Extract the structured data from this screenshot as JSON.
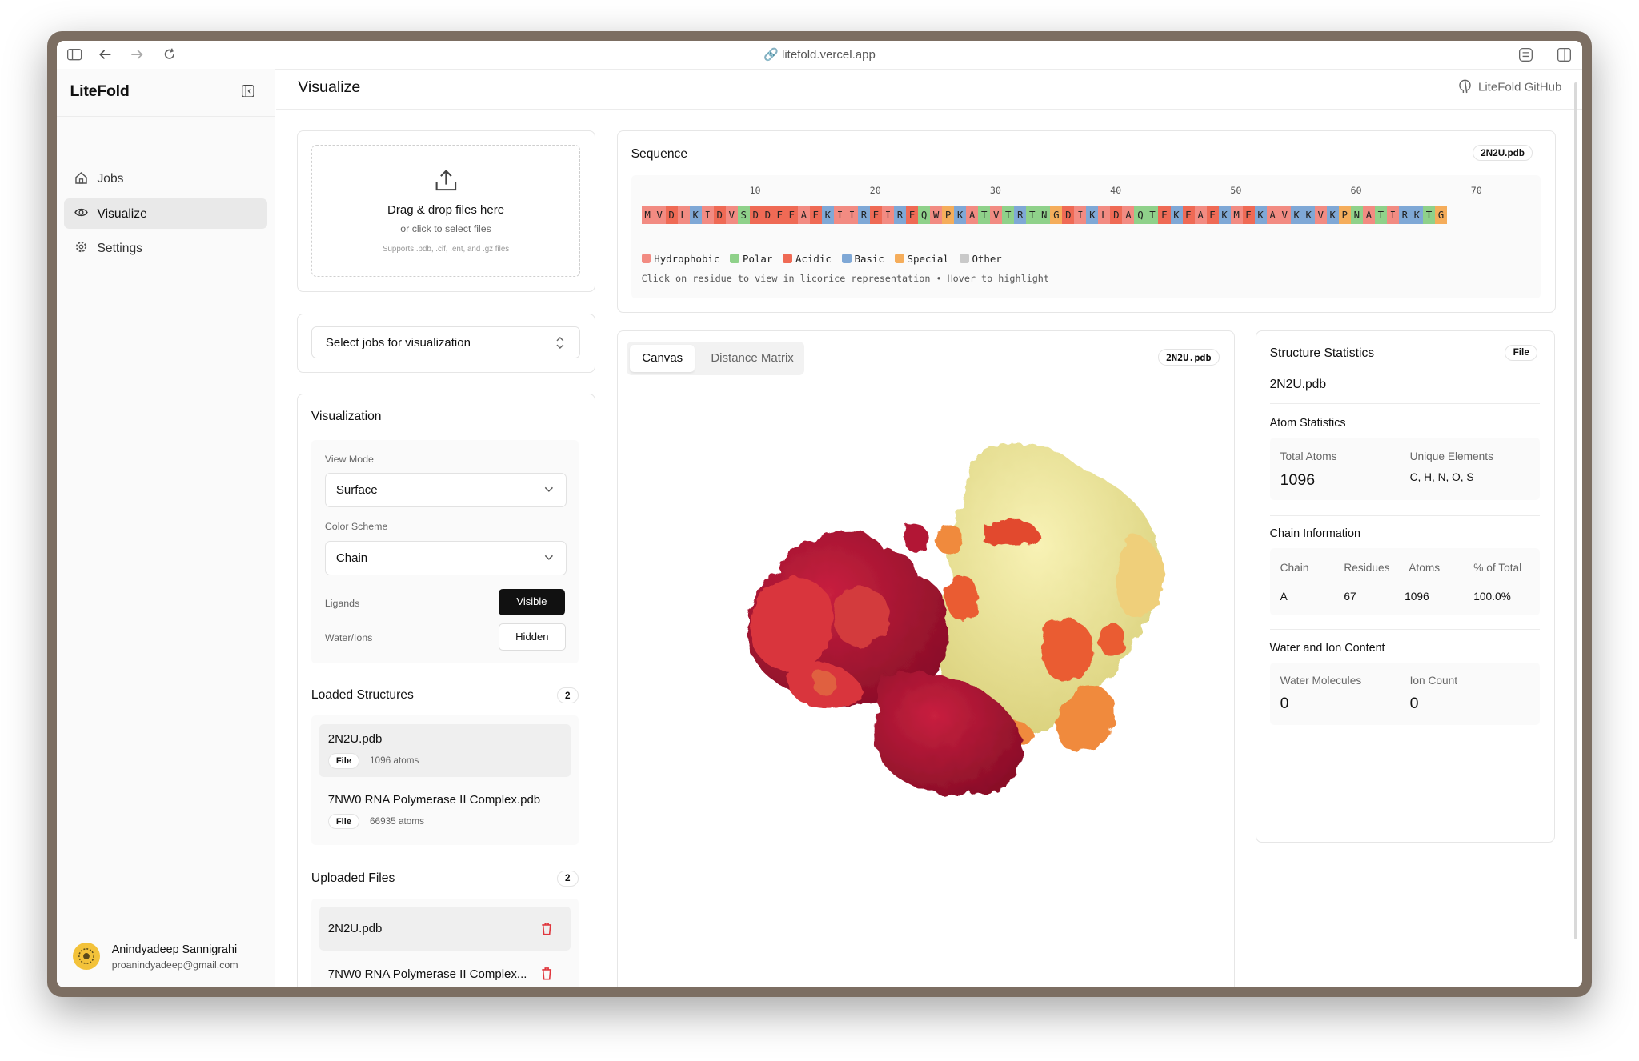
{
  "browser": {
    "url": "litefold.vercel.app"
  },
  "sidebar": {
    "brand": "LiteFold",
    "items": [
      {
        "label": "Jobs",
        "icon": "home-icon"
      },
      {
        "label": "Visualize",
        "icon": "eye-icon",
        "active": true
      },
      {
        "label": "Settings",
        "icon": "gear-icon"
      }
    ],
    "user": {
      "name": "Anindyadeep Sannigrahi",
      "email": "proanindyadeep@gmail.com"
    }
  },
  "header": {
    "title": "Visualize",
    "github": "LiteFold GitHub"
  },
  "upload": {
    "title": "Drag & drop files here",
    "subtitle": "or click to select files",
    "hint": "Supports .pdb, .cif, .ent, and .gz files"
  },
  "job_select": {
    "placeholder": "Select jobs for visualization"
  },
  "visualization": {
    "title": "Visualization",
    "view_mode_label": "View Mode",
    "view_mode_value": "Surface",
    "color_scheme_label": "Color Scheme",
    "color_scheme_value": "Chain",
    "ligands_label": "Ligands",
    "ligands_value": "Visible",
    "water_label": "Water/Ions",
    "water_value": "Hidden"
  },
  "loaded_structures": {
    "title": "Loaded Structures",
    "count": "2",
    "items": [
      {
        "name": "2N2U.pdb",
        "badge": "File",
        "atoms": "1096 atoms"
      },
      {
        "name": "7NW0 RNA Polymerase II Complex.pdb",
        "badge": "File",
        "atoms": "66935 atoms"
      }
    ]
  },
  "uploaded_files": {
    "title": "Uploaded Files",
    "count": "2",
    "items": [
      {
        "name": "2N2U.pdb"
      },
      {
        "name": "7NW0 RNA Polymerase II Complex..."
      }
    ]
  },
  "sequence": {
    "title": "Sequence",
    "file": "2N2U.pdb",
    "ticks": [
      "10",
      "20",
      "30",
      "40",
      "50",
      "60",
      "70"
    ],
    "residues": "MVDLKIDVSDDEEAEKIIREIREQWPKATVTRTNGDIKLDAQTEKEAEKMEKAVKKVKPNATIRKTG",
    "legend": [
      {
        "label": "Hydrophobic",
        "color": "#f28b82"
      },
      {
        "label": "Polar",
        "color": "#8fd18a"
      },
      {
        "label": "Acidic",
        "color": "#ef6a55"
      },
      {
        "label": "Basic",
        "color": "#7fa8d6"
      },
      {
        "label": "Special",
        "color": "#f5ad5b"
      },
      {
        "label": "Other",
        "color": "#c9c9c9"
      }
    ],
    "hint": "Click on residue to view in licorice representation • Hover to highlight"
  },
  "viewer": {
    "tabs": [
      "Canvas",
      "Distance Matrix"
    ],
    "active_tab": "Canvas",
    "file": "2N2U.pdb"
  },
  "stats": {
    "title": "Structure Statistics",
    "badge": "File",
    "file": "2N2U.pdb",
    "atom_title": "Atom Statistics",
    "total_atoms_label": "Total Atoms",
    "total_atoms": "1096",
    "unique_elements_label": "Unique Elements",
    "unique_elements": "C, H, N, O, S",
    "chain_title": "Chain Information",
    "chain_headers": [
      "Chain",
      "Residues",
      "Atoms",
      "% of Total"
    ],
    "chain_rows": [
      [
        "A",
        "67",
        "1096",
        "100.0%"
      ]
    ],
    "water_title": "Water and Ion Content",
    "water_label": "Water Molecules",
    "water_value": "0",
    "ion_label": "Ion Count",
    "ion_value": "0"
  }
}
